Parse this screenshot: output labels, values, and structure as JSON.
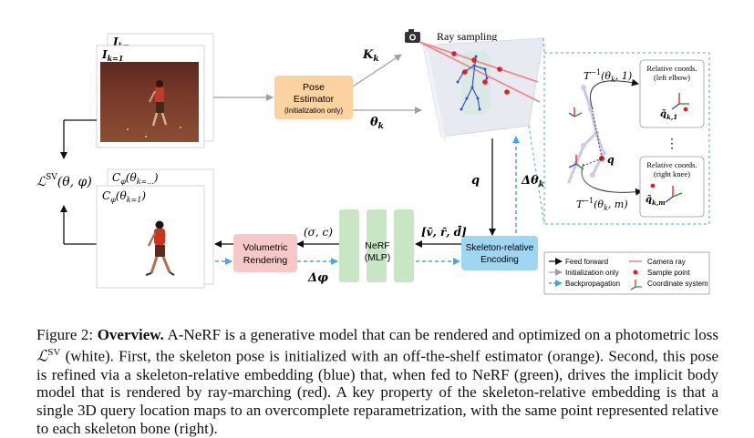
{
  "diagram": {
    "ray_sampling_title": "Ray sampling",
    "pose_estimator": {
      "line1": "Pose",
      "line2": "Estimator",
      "line3": "(Initialization only)"
    },
    "volumetric": {
      "line1": "Volumetric",
      "line2": "Rendering"
    },
    "nerf": {
      "line1": "NeRF",
      "line2": "(MLP)"
    },
    "encoding": {
      "line1": "Skeleton-relative",
      "line2": "Encoding"
    },
    "labels": {
      "K_k": "K",
      "K_sub": "k",
      "theta_k": "θ",
      "theta_sub": "k",
      "I_k1": "I",
      "I_k1_sub": "k=1",
      "I_kdots": "I",
      "I_kdots_sub": "k=...",
      "loss": "ℒ",
      "loss_sup": "SV",
      "loss_args": "(θ, φ)",
      "C_top": "C",
      "C_top_sub": "φ",
      "C_top_args": "(θ",
      "C_top_args_sub": "k=...",
      "C_top_close": ")",
      "C_front": "C",
      "C_front_sub": "φ",
      "C_front_args": "(θ",
      "C_front_args_sub": "k=1",
      "C_front_close": ")",
      "sigma_c": "(σ, c)",
      "delta_phi": "Δφ",
      "vrd": "[v̄, r̄, d̄]",
      "q": "q",
      "delta_theta": "Δθ",
      "delta_theta_sub": "k",
      "T1": "T",
      "T1_sup": "−1",
      "T1_args": "(θ",
      "T1_args_sub": "k",
      "T1_args_end": ", 1)",
      "Tm": "T",
      "Tm_sup": "−1",
      "Tm_args": "(θ",
      "Tm_args_sub": "k",
      "Tm_args_end": ", m)",
      "rel1_line1": "Relative coords.",
      "rel1_line2": "(left elbow)",
      "rel2_line1": "Relative coords.",
      "rel2_line2": "(right knee)",
      "q1": "q̃",
      "q1_sub": "k,1",
      "qm": "q̃",
      "qm_sub": "k,m",
      "q_center": "q",
      "vdots": "⋮"
    },
    "legend": [
      {
        "label": "Feed forward"
      },
      {
        "label": "Camera ray"
      },
      {
        "label": "Initialization only"
      },
      {
        "label": "Sample point"
      },
      {
        "label": "Backpropagation"
      },
      {
        "label": "Coordinate system"
      }
    ],
    "colors": {
      "pose_fill": "#fcd3a0",
      "volumetric_fill": "#f6c8c6",
      "nerf_fill": "#c8e6c4",
      "encoding_fill": "#9fd6f2",
      "backprop": "#4da3e8",
      "camera_ray": "#f08080",
      "gray_arrow": "#a0a0a0"
    }
  },
  "caption": {
    "figure_label": "Figure 2:",
    "bold_title": "Overview.",
    "text1": " A-NeRF is a generative model that can be rendered and optimized on a photometric loss ",
    "loss_symbol": "ℒ",
    "loss_sup": "SV",
    "text2": " (white). First, the skeleton pose is initialized with an off-the-shelf estimator (orange). Second, this pose is refined via a skeleton-relative embedding (blue) that, when fed to NeRF (green), drives the implicit body model that is rendered by ray-marching (red). A key property of the skeleton-relative embedding is that a single 3D query location maps to an overcomplete reparametrization, with the same point represented relative to each skeleton bone (right)."
  }
}
